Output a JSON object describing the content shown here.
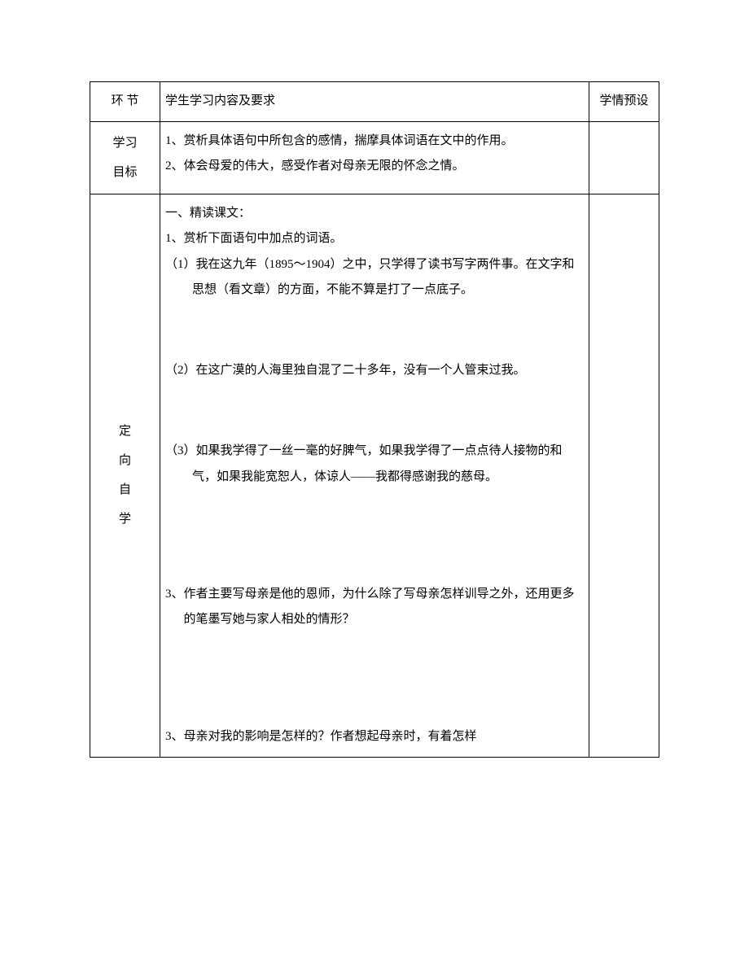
{
  "header": {
    "col1": "环 节",
    "col2": "学生学习内容及要求",
    "col3": "学情预设"
  },
  "objectives": {
    "label_line1": "学习",
    "label_line2": "目标",
    "line1": "1、赏析具体语句中所包含的感情，揣摩具体词语在文中的作用。",
    "line2": "2、体会母爱的伟大，感受作者对母亲无限的怀念之情。"
  },
  "selfstudy": {
    "label_c1": "定",
    "label_c2": "向",
    "label_c3": "自",
    "label_c4": "学",
    "sec1_title": "一、精读课文：",
    "sec1_q1": "1、赏析下面语句中加点的词语。",
    "sec1_q1a": "（1）我在这九年（1895～1904）之中，只学得了读书写字两件事。在文字和思想（看文章）的方面，不能不算是打了一点底子。",
    "sec1_q1b": "（2）在这广漠的人海里独自混了二十多年，没有一个人管束过我。",
    "sec1_q1c": "（3）如果我学得了一丝一毫的好脾气，如果我学得了一点点待人接物的和气，如果我能宽恕人，体谅人——我都得感谢我的慈母。",
    "sec1_q3": "3、作者主要写母亲是他的恩师，为什么除了写母亲怎样训导之外，还用更多的笔墨写她与家人相处的情形？",
    "sec1_q3b": "3、母亲对我的影响是怎样的？作者想起母亲时，有着怎样"
  },
  "style": {
    "font_family": "SimSun",
    "font_size_pt": 11,
    "line_height": 2.1,
    "text_color": "#000000",
    "border_color": "#000000",
    "background_color": "#ffffff"
  }
}
